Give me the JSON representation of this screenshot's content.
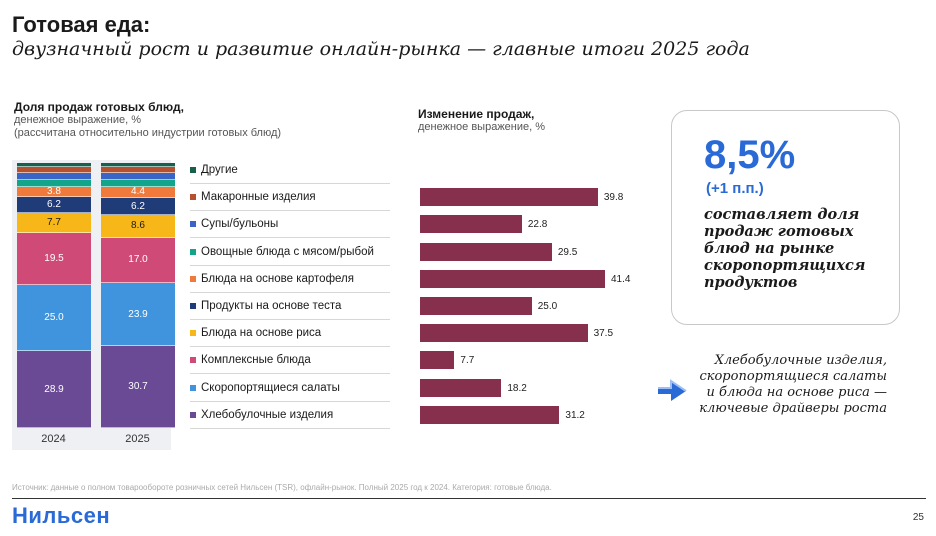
{
  "header": {
    "title": "Готовая еда:",
    "subtitle": "двузначный рост и развитие онлайн-рынка — главные итоги 2025 года"
  },
  "left_chart_header": {
    "title": "Доля продаж готовых блюд,",
    "line2": "денежное выражение, %",
    "line3": "(рассчитана относительно индустрии готовых блюд)"
  },
  "right_chart_header": {
    "title": "Изменение продаж,",
    "line2": "денежное выражение, %"
  },
  "chart_data": [
    {
      "type": "bar",
      "stacked": true,
      "title": "Доля продаж готовых блюд, денежное выражение, %",
      "categories": [
        "2024",
        "2025"
      ],
      "series": [
        {
          "name": "Хлебобулочные изделия",
          "color": "#6a4a94",
          "values": [
            28.9,
            30.7
          ]
        },
        {
          "name": "Скоропортящиеся салаты",
          "color": "#3f94dd",
          "values": [
            25.0,
            23.9
          ]
        },
        {
          "name": "Комплексные блюда",
          "color": "#d04a78",
          "values": [
            19.5,
            17.0
          ]
        },
        {
          "name": "Блюда на основе риса",
          "color": "#f7b719",
          "values": [
            7.7,
            8.6
          ]
        },
        {
          "name": "Продукты на основе теста",
          "color": "#1f3b78",
          "values": [
            6.2,
            6.2
          ]
        },
        {
          "name": "Блюда на основе картофеля",
          "color": "#f07a3c",
          "values": [
            3.8,
            4.4
          ]
        },
        {
          "name": "Овощные блюда с мясом/рыбой",
          "color": "#13a58a",
          "values": [
            2.6,
            2.6
          ]
        },
        {
          "name": "Супы/бульоны",
          "color": "#3a64c6",
          "values": [
            2.6,
            2.6
          ]
        },
        {
          "name": "Макаронные изделия",
          "color": "#b5512f",
          "values": [
            2.2,
            2.2
          ]
        },
        {
          "name": "Другие",
          "color": "#17614c",
          "values": [
            1.5,
            1.5
          ]
        }
      ],
      "labeled_series": [
        "Хлебобулочные изделия",
        "Скоропортящиеся салаты",
        "Комплексные блюда",
        "Блюда на основе риса",
        "Продукты на основе теста",
        "Блюда на основе картофеля"
      ],
      "ylim": [
        0,
        100
      ]
    },
    {
      "type": "bar",
      "orientation": "horizontal",
      "title": "Изменение продаж, денежное выражение, %",
      "bar_color": "#86304e",
      "categories": [
        "Другие",
        "Макаронные изделия",
        "Супы/бульоны",
        "Овощные блюда с мясом/рыбой",
        "Блюда на основе картофеля",
        "Продукты на основе теста",
        "Блюда на основе риса",
        "Комплексные блюда",
        "Скоропортящиеся салаты",
        "Хлебобулочные изделия"
      ],
      "values": [
        null,
        39.8,
        22.8,
        29.5,
        41.4,
        25.0,
        37.5,
        7.7,
        18.2,
        31.2
      ],
      "labels": [
        "",
        "39.8",
        "22.8",
        "29.5",
        "41.4",
        "25.0",
        "37.5",
        "7.7",
        "18.2",
        "31.2"
      ],
      "xlim": [
        0,
        45
      ]
    }
  ],
  "card": {
    "value": "8,5%",
    "delta": "(+1 п.п.)",
    "text": "составляет доля продаж готовых блюд на рынке скоропортящихся продуктов"
  },
  "drivers": {
    "text": "Хлебобулочные изделия, скоропортящиеся салаты и блюда на основе риса — ключевые драйверы роста"
  },
  "footer": {
    "source": "Источник: данные о полном товарообороте розничных сетей Нильсен (TSR), офлайн-рынок. Полный 2025 год к 2024. Категория: готовые блюда.",
    "logo": "Нильсен",
    "page": "25"
  },
  "colors": {
    "accent": "#2a6ad6",
    "bar": "#86304e"
  }
}
